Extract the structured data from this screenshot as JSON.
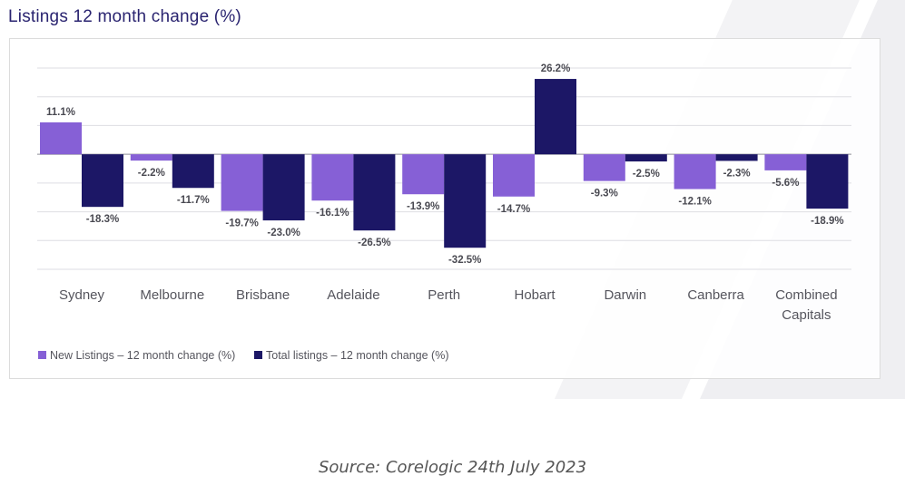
{
  "title": "Listings 12 month change (%)",
  "source": "Source: Corelogic 24th July 2023",
  "chart_data": {
    "type": "bar",
    "title": "Listings 12 month change (%)",
    "categories": [
      "Sydney",
      "Melbourne",
      "Brisbane",
      "Adelaide",
      "Perth",
      "Hobart",
      "Darwin",
      "Canberra",
      "Combined Capitals"
    ],
    "series": [
      {
        "name": "New Listings – 12 month change (%)",
        "color": "#8660d6",
        "values": [
          11.1,
          -2.2,
          -19.7,
          -16.1,
          -13.9,
          -14.7,
          -9.3,
          -12.1,
          -5.6
        ],
        "labels": [
          "11.1%",
          "-2.2%",
          "-19.7%",
          "-16.1%",
          "-13.9%",
          "-14.7%",
          "-9.3%",
          "-12.1%",
          "-5.6%"
        ]
      },
      {
        "name": "Total listings – 12 month change (%)",
        "color": "#1c1766",
        "values": [
          -18.3,
          -11.7,
          -23.0,
          -26.5,
          -32.5,
          26.2,
          -2.5,
          -2.3,
          -18.9
        ],
        "labels": [
          "-18.3%",
          "-11.7%",
          "-23.0%",
          "-26.5%",
          "-32.5%",
          "26.2%",
          "-2.5%",
          "-2.3%",
          "-18.9%"
        ]
      }
    ],
    "ylim": [
      -40,
      30
    ],
    "gridlines": [
      30,
      20,
      10,
      0,
      -10,
      -20,
      -30,
      -40
    ],
    "grid": true,
    "legend_position": "bottom-left",
    "xlabel": "",
    "ylabel": ""
  }
}
